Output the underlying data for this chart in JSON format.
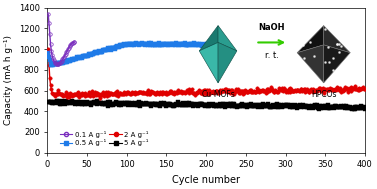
{
  "title": "",
  "xlabel": "Cycle number",
  "ylabel": "Capacity (mA h g⁻¹)",
  "xlim": [
    0,
    400
  ],
  "ylim": [
    0,
    1400
  ],
  "yticks": [
    0,
    200,
    400,
    600,
    800,
    1000,
    1200,
    1400
  ],
  "xticks": [
    0,
    50,
    100,
    150,
    200,
    250,
    300,
    350,
    400
  ],
  "bg_color": "#ffffff",
  "legend_labels": [
    "0.1 A g⁻¹",
    "0.5 A g⁻¹",
    "2 A g⁻¹",
    "5 A g⁻¹"
  ],
  "legend_colors": [
    "#7b2fbe",
    "#1f7be8",
    "#e00000",
    "#000000"
  ],
  "purple_color": "#7b2fbe",
  "blue_color": "#1f7be8",
  "red_color": "#e00000",
  "black_color": "#000000",
  "teal_color": "#2a9d8f",
  "teal_dark": "#1a6b62",
  "teal_mid": "#3ab8a8",
  "hpco_color": "#1a1a1a",
  "hpco_edge": "#888888",
  "naoh_arrow_color": "#33cc00",
  "naoh_text": "NaOH",
  "rt_text": "r. t.",
  "cumofs_text": "Cu-MOFs",
  "hpcos_text": "HPCOs"
}
